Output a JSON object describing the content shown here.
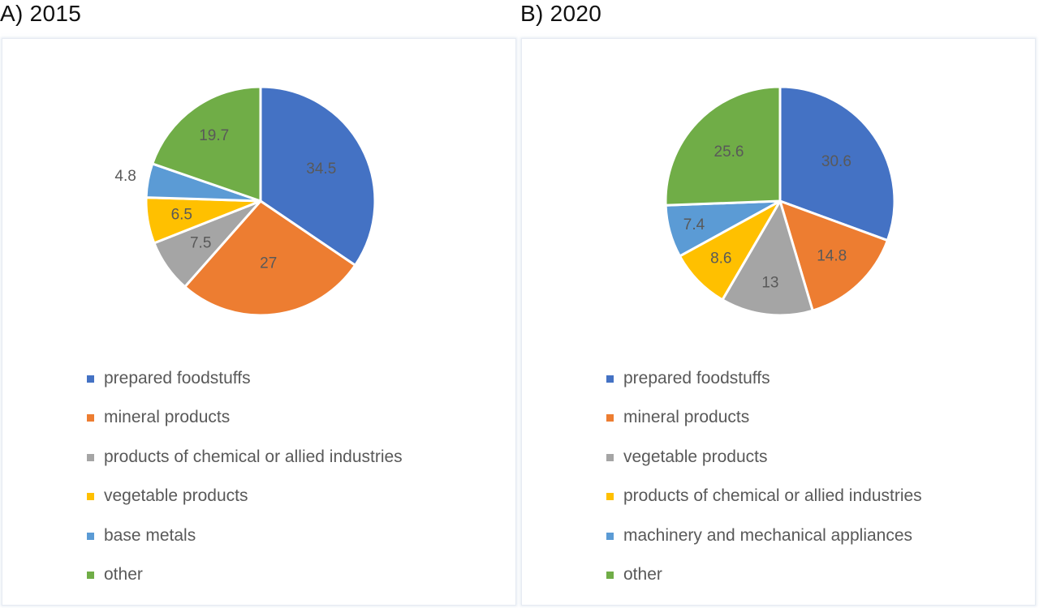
{
  "chart_data": [
    {
      "type": "pie",
      "title": "A) 2015",
      "categories": [
        "prepared foodstuffs",
        "mineral products",
        "products of chemical or allied industries",
        "vegetable products",
        "base metals",
        "other"
      ],
      "values": [
        34.5,
        27,
        7.5,
        6.5,
        4.8,
        19.7
      ],
      "data_labels": [
        "34.5",
        "27",
        "7.5",
        "6.5",
        "4.8",
        "19.7"
      ],
      "colors": [
        "#4472c4",
        "#ed7d31",
        "#a5a5a5",
        "#ffc000",
        "#5b9bd5",
        "#70ad47"
      ],
      "legend_position": "bottom"
    },
    {
      "type": "pie",
      "title": "B) 2020",
      "categories": [
        "prepared foodstuffs",
        "mineral products",
        "vegetable products",
        "products of chemical or allied industries",
        "machinery and mechanical appliances",
        "other"
      ],
      "values": [
        30.6,
        14.8,
        13,
        8.6,
        7.4,
        25.6
      ],
      "data_labels": [
        "30.6",
        "14.8",
        "13",
        "8.6",
        "7.4",
        "25.6"
      ],
      "colors": [
        "#4472c4",
        "#ed7d31",
        "#a5a5a5",
        "#ffc000",
        "#5b9bd5",
        "#70ad47"
      ],
      "legend_position": "bottom"
    }
  ]
}
